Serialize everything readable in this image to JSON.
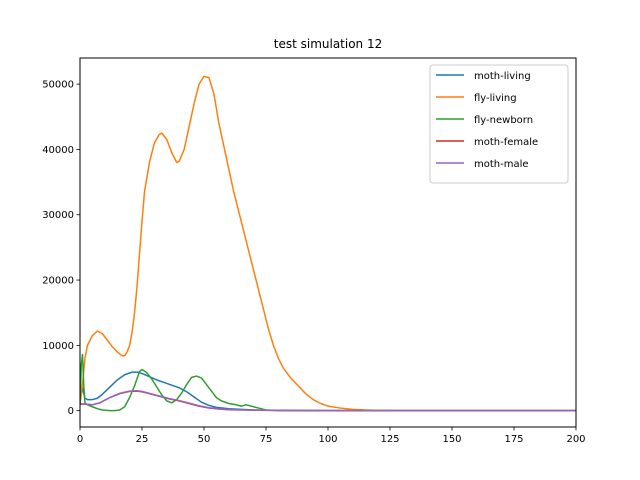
{
  "chart_data": {
    "type": "line",
    "title": "test simulation 12",
    "xlabel": "",
    "ylabel": "",
    "xlim": [
      0,
      200
    ],
    "ylim": [
      -2500,
      54000
    ],
    "xticks": [
      0,
      25,
      50,
      75,
      100,
      125,
      150,
      175,
      200
    ],
    "yticks": [
      0,
      10000,
      20000,
      30000,
      40000,
      50000
    ],
    "grid": false,
    "legend": "top-right",
    "series": [
      {
        "name": "moth-living",
        "color": "#1f77b4",
        "points": [
          [
            0,
            1400
          ],
          [
            1,
            3500
          ],
          [
            2,
            1900
          ],
          [
            3,
            1700
          ],
          [
            5,
            1700
          ],
          [
            7,
            1900
          ],
          [
            9,
            2500
          ],
          [
            12,
            3600
          ],
          [
            15,
            4700
          ],
          [
            18,
            5500
          ],
          [
            21,
            5900
          ],
          [
            23,
            5900
          ],
          [
            25,
            5700
          ],
          [
            28,
            5200
          ],
          [
            31,
            4700
          ],
          [
            34,
            4300
          ],
          [
            37,
            3900
          ],
          [
            40,
            3500
          ],
          [
            43,
            2900
          ],
          [
            46,
            2100
          ],
          [
            49,
            1300
          ],
          [
            52,
            800
          ],
          [
            55,
            500
          ],
          [
            60,
            300
          ],
          [
            65,
            200
          ],
          [
            70,
            100
          ],
          [
            80,
            50
          ],
          [
            100,
            0
          ],
          [
            200,
            0
          ]
        ]
      },
      {
        "name": "fly-living",
        "color": "#ff7f0e",
        "points": [
          [
            0,
            1000
          ],
          [
            1,
            4000
          ],
          [
            2,
            8000
          ],
          [
            3,
            10000
          ],
          [
            5,
            11500
          ],
          [
            7,
            12200
          ],
          [
            9,
            11800
          ],
          [
            11,
            10800
          ],
          [
            13,
            9800
          ],
          [
            15,
            9000
          ],
          [
            17,
            8400
          ],
          [
            18,
            8400
          ],
          [
            19,
            9000
          ],
          [
            20,
            10000
          ],
          [
            21,
            12000
          ],
          [
            22,
            15000
          ],
          [
            23,
            19000
          ],
          [
            24,
            24000
          ],
          [
            25,
            29000
          ],
          [
            26,
            33500
          ],
          [
            28,
            38000
          ],
          [
            30,
            41000
          ],
          [
            32,
            42300
          ],
          [
            33,
            42500
          ],
          [
            35,
            41500
          ],
          [
            37,
            39500
          ],
          [
            39,
            38000
          ],
          [
            40,
            38200
          ],
          [
            42,
            40000
          ],
          [
            44,
            43500
          ],
          [
            46,
            47000
          ],
          [
            48,
            50000
          ],
          [
            50,
            51200
          ],
          [
            52,
            51000
          ],
          [
            54,
            48500
          ],
          [
            56,
            44000
          ],
          [
            58,
            40500
          ],
          [
            60,
            37000
          ],
          [
            62,
            33500
          ],
          [
            64,
            30500
          ],
          [
            66,
            27500
          ],
          [
            68,
            24500
          ],
          [
            70,
            21500
          ],
          [
            72,
            18500
          ],
          [
            74,
            15500
          ],
          [
            76,
            12500
          ],
          [
            78,
            10000
          ],
          [
            80,
            8000
          ],
          [
            82,
            6500
          ],
          [
            85,
            5000
          ],
          [
            88,
            3800
          ],
          [
            91,
            2600
          ],
          [
            94,
            1700
          ],
          [
            97,
            1100
          ],
          [
            100,
            700
          ],
          [
            105,
            400
          ],
          [
            110,
            200
          ],
          [
            115,
            100
          ],
          [
            120,
            50
          ],
          [
            130,
            0
          ],
          [
            200,
            0
          ]
        ]
      },
      {
        "name": "fly-newborn",
        "color": "#2ca02c",
        "points": [
          [
            0,
            800
          ],
          [
            0.5,
            7000
          ],
          [
            1,
            8600
          ],
          [
            1.5,
            4000
          ],
          [
            2,
            1200
          ],
          [
            3,
            900
          ],
          [
            5,
            600
          ],
          [
            7,
            300
          ],
          [
            9,
            100
          ],
          [
            12,
            0
          ],
          [
            14,
            0
          ],
          [
            16,
            100
          ],
          [
            18,
            600
          ],
          [
            20,
            2000
          ],
          [
            22,
            3800
          ],
          [
            24,
            6000
          ],
          [
            25,
            6300
          ],
          [
            27,
            5800
          ],
          [
            29,
            4800
          ],
          [
            31,
            3600
          ],
          [
            33,
            2400
          ],
          [
            35,
            1500
          ],
          [
            37,
            1200
          ],
          [
            39,
            1700
          ],
          [
            41,
            2700
          ],
          [
            43,
            4000
          ],
          [
            45,
            5100
          ],
          [
            47,
            5300
          ],
          [
            49,
            5000
          ],
          [
            51,
            4000
          ],
          [
            53,
            3000
          ],
          [
            55,
            2000
          ],
          [
            57,
            1500
          ],
          [
            60,
            1100
          ],
          [
            63,
            900
          ],
          [
            65,
            700
          ],
          [
            67,
            900
          ],
          [
            70,
            600
          ],
          [
            73,
            300
          ],
          [
            75,
            100
          ],
          [
            80,
            50
          ],
          [
            90,
            0
          ],
          [
            200,
            0
          ]
        ]
      },
      {
        "name": "moth-female",
        "color": "#d62728",
        "points": [
          [
            0,
            1000
          ],
          [
            2,
            1000
          ],
          [
            5,
            900
          ],
          [
            8,
            1200
          ],
          [
            12,
            2000
          ],
          [
            16,
            2600
          ],
          [
            20,
            2950
          ],
          [
            23,
            3000
          ],
          [
            25,
            2900
          ],
          [
            28,
            2600
          ],
          [
            32,
            2200
          ],
          [
            36,
            1800
          ],
          [
            40,
            1500
          ],
          [
            44,
            1100
          ],
          [
            48,
            700
          ],
          [
            52,
            400
          ],
          [
            56,
            250
          ],
          [
            60,
            150
          ],
          [
            70,
            80
          ],
          [
            80,
            30
          ],
          [
            100,
            0
          ],
          [
            200,
            0
          ]
        ]
      },
      {
        "name": "moth-male",
        "color": "#9467bd",
        "points": [
          [
            0,
            1100
          ],
          [
            2,
            1000
          ],
          [
            5,
            900
          ],
          [
            8,
            1200
          ],
          [
            12,
            2000
          ],
          [
            16,
            2650
          ],
          [
            20,
            3000
          ],
          [
            23,
            3050
          ],
          [
            25,
            2950
          ],
          [
            28,
            2650
          ],
          [
            32,
            2250
          ],
          [
            36,
            1850
          ],
          [
            40,
            1550
          ],
          [
            44,
            1150
          ],
          [
            48,
            750
          ],
          [
            52,
            450
          ],
          [
            56,
            280
          ],
          [
            60,
            170
          ],
          [
            70,
            90
          ],
          [
            80,
            40
          ],
          [
            100,
            0
          ],
          [
            200,
            0
          ]
        ]
      }
    ]
  }
}
